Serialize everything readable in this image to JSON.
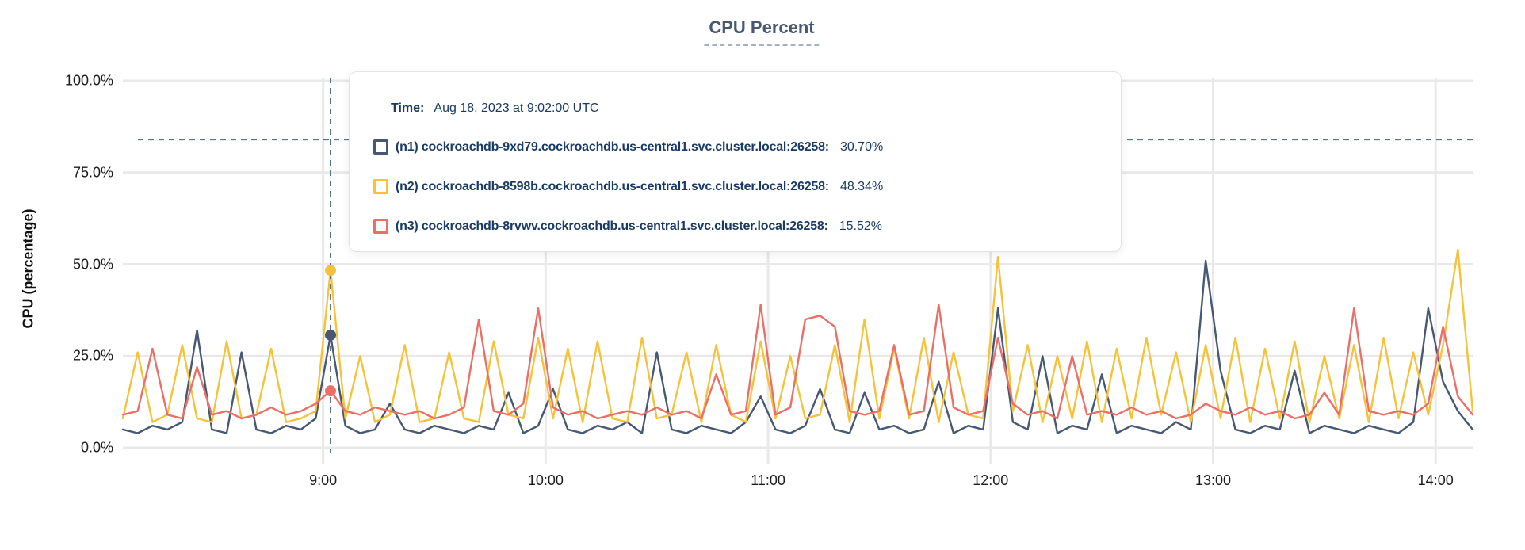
{
  "title": "CPU Percent",
  "colors": {
    "title": "#475872",
    "tooltip_text": "#1A3A64",
    "grid": "#E9E9E9",
    "cursor_dash": "#5B7186",
    "axis_text": "#1C1C1C",
    "n1": "#475872",
    "n2": "#F6C23A",
    "n3": "#EB6F66"
  },
  "tooltip": {
    "time_label": "Time:",
    "time_value": "Aug 18, 2023 at 9:02:00 UTC",
    "series": [
      {
        "label": "(n1) cockroachdb-9xd79.cockroachdb.us-central1.svc.cluster.local:26258:",
        "value": "30.70%",
        "color": "#475872"
      },
      {
        "label": "(n2) cockroachdb-8598b.cockroachdb.us-central1.svc.cluster.local:26258:",
        "value": "48.34%",
        "color": "#F6C23A"
      },
      {
        "label": "(n3) cockroachdb-8rvwv.cockroachdb.us-central1.svc.cluster.local:26258:",
        "value": "15.52%",
        "color": "#EB6F66"
      }
    ]
  },
  "chart_data": {
    "type": "line",
    "title": "CPU Percent",
    "xlabel": "",
    "ylabel": "CPU (percentage)",
    "ylim": [
      0,
      100
    ],
    "grid": true,
    "legend_position": "tooltip-overlay",
    "x_unit": "minutes since midnight UTC, Aug 18 2023",
    "x_range_minutes": [
      486,
      850
    ],
    "y_ticks": [
      {
        "value": 0,
        "label": "0.0%"
      },
      {
        "value": 25,
        "label": "25.0%"
      },
      {
        "value": 50,
        "label": "50.0%"
      },
      {
        "value": 75,
        "label": "75.0%"
      },
      {
        "value": 100,
        "label": "100.0%"
      }
    ],
    "x_ticks": [
      {
        "minutes": 540,
        "label": "9:00"
      },
      {
        "minutes": 600,
        "label": "10:00"
      },
      {
        "minutes": 660,
        "label": "11:00"
      },
      {
        "minutes": 720,
        "label": "12:00"
      },
      {
        "minutes": 780,
        "label": "13:00"
      },
      {
        "minutes": 840,
        "label": "14:00"
      }
    ],
    "cursor": {
      "x_minutes": 542,
      "time_label": "Aug 18, 2023 at 9:02:00 UTC",
      "y_percent_crosshair": 84,
      "values": [
        30.7,
        48.34,
        15.52
      ]
    },
    "x": [
      486,
      490,
      494,
      498,
      502,
      506,
      510,
      514,
      518,
      522,
      526,
      530,
      534,
      538,
      542,
      546,
      550,
      554,
      558,
      562,
      566,
      570,
      574,
      578,
      582,
      586,
      590,
      594,
      598,
      602,
      606,
      610,
      614,
      618,
      622,
      626,
      630,
      634,
      638,
      642,
      646,
      650,
      654,
      658,
      662,
      666,
      670,
      674,
      678,
      682,
      686,
      690,
      694,
      698,
      702,
      706,
      710,
      714,
      718,
      722,
      726,
      730,
      734,
      738,
      742,
      746,
      750,
      754,
      758,
      762,
      766,
      770,
      774,
      778,
      782,
      786,
      790,
      794,
      798,
      802,
      806,
      810,
      814,
      818,
      822,
      826,
      830,
      834,
      838,
      842,
      846,
      850
    ],
    "series": [
      {
        "name": "(n1) cockroachdb-9xd79.cockroachdb.us-central1.svc.cluster.local:26258",
        "color": "#475872",
        "values": [
          5,
          4,
          6,
          5,
          7,
          32,
          5,
          4,
          26,
          5,
          4,
          6,
          5,
          8,
          30.7,
          6,
          4,
          5,
          12,
          5,
          4,
          6,
          5,
          4,
          6,
          5,
          15,
          4,
          6,
          16,
          5,
          4,
          6,
          5,
          7,
          4,
          26,
          5,
          4,
          6,
          5,
          4,
          7,
          14,
          5,
          4,
          6,
          16,
          5,
          4,
          15,
          5,
          6,
          4,
          5,
          18,
          4,
          6,
          5,
          38,
          7,
          5,
          25,
          4,
          6,
          5,
          20,
          4,
          6,
          5,
          4,
          7,
          5,
          51,
          21,
          5,
          4,
          6,
          5,
          21,
          4,
          6,
          5,
          4,
          6,
          5,
          4,
          7,
          38,
          18,
          10,
          5
        ]
      },
      {
        "name": "(n2) cockroachdb-8598b.cockroachdb.us-central1.svc.cluster.local:26258",
        "color": "#F6C23A",
        "values": [
          8,
          26,
          7,
          9,
          28,
          8,
          7,
          29,
          8,
          9,
          27,
          7,
          8,
          10,
          48.34,
          8,
          25,
          7,
          9,
          28,
          7,
          8,
          26,
          8,
          7,
          29,
          9,
          8,
          30,
          8,
          27,
          7,
          29,
          8,
          7,
          30,
          8,
          9,
          26,
          7,
          28,
          9,
          7,
          29,
          8,
          25,
          8,
          9,
          28,
          7,
          35,
          8,
          27,
          8,
          30,
          7,
          26,
          9,
          8,
          52,
          10,
          28,
          7,
          25,
          8,
          29,
          7,
          27,
          8,
          30,
          9,
          26,
          7,
          28,
          8,
          30,
          7,
          27,
          8,
          29,
          7,
          25,
          8,
          28,
          7,
          30,
          8,
          26,
          9,
          28,
          54,
          10
        ]
      },
      {
        "name": "(n3) cockroachdb-8rvwv.cockroachdb.us-central1.svc.cluster.local:26258",
        "color": "#EB6F66",
        "values": [
          9,
          10,
          27,
          9,
          8,
          22,
          9,
          10,
          8,
          9,
          11,
          9,
          10,
          12,
          15.52,
          10,
          9,
          11,
          10,
          9,
          10,
          8,
          9,
          11,
          35,
          10,
          9,
          12,
          38,
          11,
          9,
          10,
          8,
          9,
          10,
          9,
          11,
          9,
          10,
          8,
          20,
          9,
          10,
          39,
          9,
          11,
          35,
          36,
          33,
          10,
          9,
          10,
          28,
          9,
          10,
          39,
          11,
          9,
          10,
          30,
          12,
          9,
          10,
          8,
          25,
          9,
          10,
          9,
          11,
          9,
          10,
          8,
          9,
          12,
          10,
          9,
          11,
          9,
          10,
          8,
          9,
          15,
          9,
          38,
          10,
          9,
          10,
          9,
          12,
          33,
          14,
          9
        ]
      }
    ]
  }
}
